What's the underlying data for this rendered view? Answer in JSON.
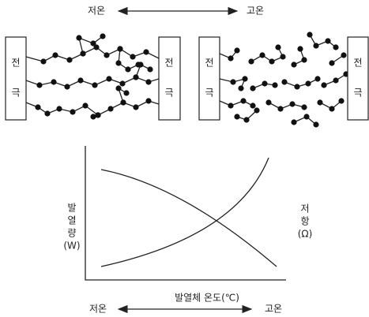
{
  "top_scale": {
    "low": "저온",
    "high": "고온"
  },
  "electrodes": [
    {
      "line1": "전",
      "line2": "극"
    },
    {
      "line1": "전",
      "line2": "극"
    },
    {
      "line1": "전",
      "line2": "극"
    },
    {
      "line1": "전",
      "line2": "극"
    }
  ],
  "graph": {
    "y_left_label": [
      "발",
      "열",
      "량",
      "(W)"
    ],
    "y_right_label": [
      "저",
      "항",
      "(Ω)"
    ],
    "x_label": "발열체 온도(℃)"
  },
  "bottom_scale": {
    "low": "저온",
    "high": "고온"
  }
}
